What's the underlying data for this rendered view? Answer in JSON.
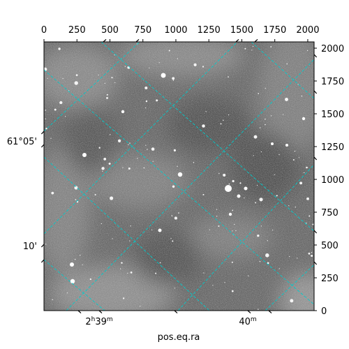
{
  "chart_data": {
    "type": "heatmap",
    "description_kind": "astronomical image with WCS grid overlay",
    "xlabel": "pos.eq.ra",
    "ylabel": "",
    "pixel_axes": {
      "top_ticks": [
        "0",
        "250",
        "500",
        "750",
        "1000",
        "1250",
        "1500",
        "1750",
        "2000"
      ],
      "top_tick_values": [
        0,
        250,
        500,
        750,
        1000,
        1250,
        1500,
        1750,
        2000
      ],
      "right_ticks": [
        "0",
        "250",
        "500",
        "750",
        "1000",
        "1250",
        "1500",
        "1750",
        "2000"
      ],
      "right_tick_values": [
        0,
        250,
        500,
        750,
        1000,
        1250,
        1500,
        1750,
        2000
      ],
      "xlim": [
        0,
        2048
      ],
      "ylim": [
        0,
        2048
      ]
    },
    "world_axes": {
      "ra_ticks": [
        {
          "label_main": "2",
          "label_sup1": "h",
          "label_rest": "39",
          "label_sup2": "m"
        },
        {
          "label_main": "40",
          "label_sup1": "m",
          "label_rest": "",
          "label_sup2": ""
        }
      ],
      "dec_ticks": [
        "61°05'",
        "10'"
      ]
    },
    "grid": true,
    "grid_color": "#00cccc",
    "colormap": "gray"
  }
}
